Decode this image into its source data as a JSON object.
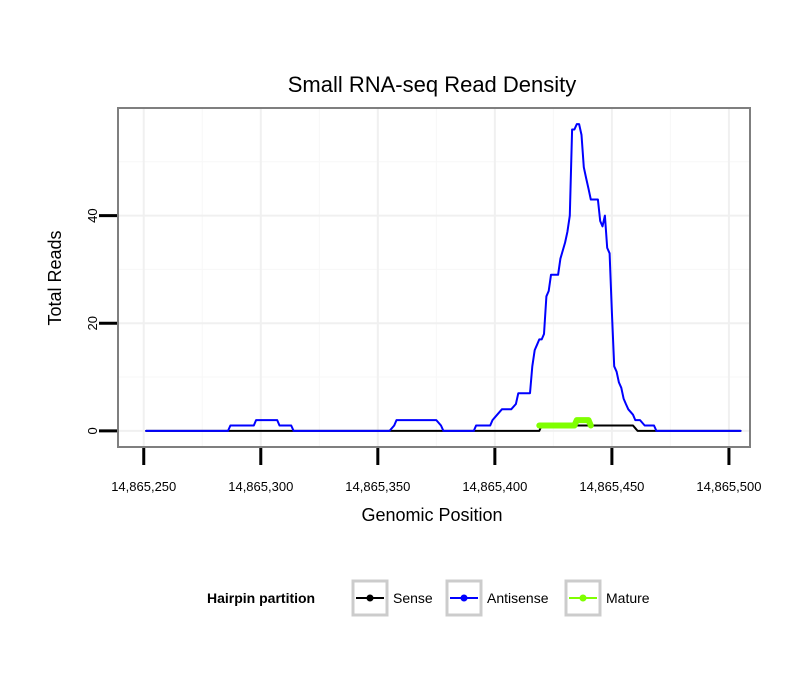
{
  "chart_data": {
    "type": "line",
    "title": "Small RNA-seq Read Density",
    "xlabel": "Genomic Position",
    "ylabel": "Total Reads",
    "xlim": [
      14865239,
      14865509
    ],
    "ylim": [
      -3,
      60
    ],
    "x_ticks": [
      14865250,
      14865300,
      14865350,
      14865400,
      14865450,
      14865500
    ],
    "x_tick_labels": [
      "14,865,250",
      "14,865,300",
      "14,865,350",
      "14,865,400",
      "14,865,450",
      "14,865,500"
    ],
    "y_ticks": [
      0,
      20,
      40
    ],
    "y_tick_labels": [
      "0",
      "20",
      "40"
    ],
    "grid": true,
    "legend": {
      "title": "Hairpin partition",
      "position": "bottom",
      "entries": [
        "Sense",
        "Antisense",
        "Mature"
      ]
    },
    "series": [
      {
        "name": "Sense",
        "color": "#000000",
        "points": [
          [
            14865251,
            0
          ],
          [
            14865419,
            0
          ],
          [
            14865420,
            1
          ],
          [
            14865459,
            1
          ],
          [
            14865461,
            0
          ],
          [
            14865505,
            0
          ]
        ]
      },
      {
        "name": "Antisense",
        "color": "#0000ff",
        "points": [
          [
            14865251,
            0
          ],
          [
            14865286,
            0
          ],
          [
            14865287,
            1
          ],
          [
            14865297,
            1
          ],
          [
            14865298,
            2
          ],
          [
            14865307,
            2
          ],
          [
            14865308,
            1
          ],
          [
            14865313,
            1
          ],
          [
            14865314,
            0
          ],
          [
            14865355,
            0
          ],
          [
            14865357,
            1
          ],
          [
            14865358,
            2
          ],
          [
            14865375,
            2
          ],
          [
            14865377,
            1
          ],
          [
            14865378,
            0
          ],
          [
            14865391,
            0
          ],
          [
            14865392,
            1
          ],
          [
            14865398,
            1
          ],
          [
            14865399,
            2
          ],
          [
            14865401,
            3
          ],
          [
            14865403,
            4
          ],
          [
            14865407,
            4
          ],
          [
            14865409,
            5
          ],
          [
            14865410,
            7
          ],
          [
            14865415,
            7
          ],
          [
            14865416,
            12
          ],
          [
            14865417,
            15
          ],
          [
            14865418,
            16
          ],
          [
            14865419,
            17
          ],
          [
            14865420,
            17
          ],
          [
            14865421,
            18
          ],
          [
            14865422,
            25
          ],
          [
            14865423,
            26
          ],
          [
            14865424,
            29
          ],
          [
            14865427,
            29
          ],
          [
            14865428,
            32
          ],
          [
            14865430,
            35
          ],
          [
            14865431,
            37
          ],
          [
            14865432,
            40
          ],
          [
            14865433,
            56
          ],
          [
            14865434,
            56
          ],
          [
            14865435,
            57
          ],
          [
            14865436,
            57
          ],
          [
            14865437,
            55
          ],
          [
            14865438,
            49
          ],
          [
            14865439,
            47
          ],
          [
            14865440,
            45
          ],
          [
            14865441,
            43
          ],
          [
            14865444,
            43
          ],
          [
            14865445,
            39
          ],
          [
            14865446,
            38
          ],
          [
            14865447,
            40
          ],
          [
            14865448,
            34
          ],
          [
            14865449,
            33
          ],
          [
            14865450,
            22
          ],
          [
            14865451,
            12
          ],
          [
            14865452,
            11
          ],
          [
            14865453,
            9
          ],
          [
            14865454,
            8
          ],
          [
            14865455,
            6
          ],
          [
            14865456,
            5
          ],
          [
            14865457,
            4
          ],
          [
            14865459,
            3
          ],
          [
            14865460,
            2
          ],
          [
            14865462,
            2
          ],
          [
            14865464,
            1
          ],
          [
            14865468,
            1
          ],
          [
            14865469,
            0
          ],
          [
            14865505,
            0
          ]
        ]
      },
      {
        "name": "Mature",
        "color": "#7fff00",
        "points": [
          [
            14865419,
            1
          ],
          [
            14865420,
            1
          ],
          [
            14865434,
            1
          ],
          [
            14865435,
            2
          ],
          [
            14865440,
            2
          ],
          [
            14865441,
            1
          ]
        ]
      }
    ]
  }
}
